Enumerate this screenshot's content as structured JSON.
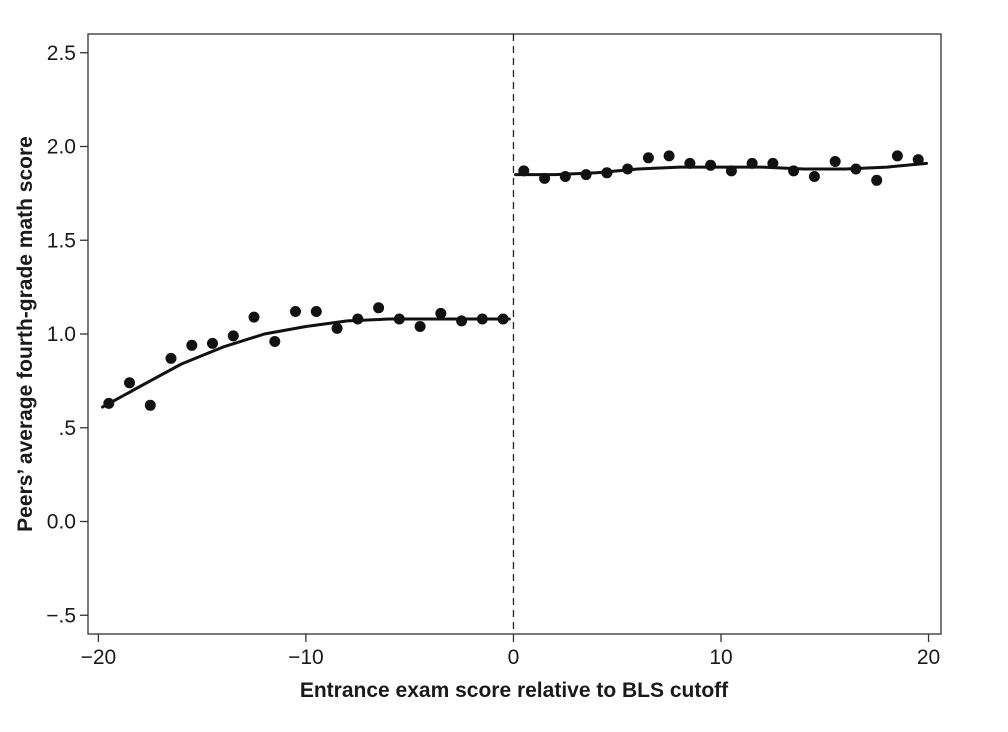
{
  "chart_data": {
    "type": "scatter",
    "title": "",
    "xlabel": "Entrance exam score relative to BLS cutoff",
    "ylabel": "Peers’ average fourth-grade math score",
    "xlim": [
      -20.5,
      20.6
    ],
    "ylim": [
      -0.6,
      2.6
    ],
    "x_ticks": [
      -20,
      -10,
      0,
      10,
      20
    ],
    "x_tick_labels": [
      "−20",
      "−10",
      "0",
      "10",
      "20"
    ],
    "y_ticks": [
      -0.5,
      0.0,
      0.5,
      1.0,
      1.5,
      2.0,
      2.5
    ],
    "y_tick_labels": [
      "−.5",
      "0.0",
      ".5",
      "1.0",
      "1.5",
      "2.0",
      "2.5"
    ],
    "grid": false,
    "legend": "none",
    "cutoff_x": 0,
    "colors": {
      "points": "#111111",
      "fit": "#111111",
      "cutoff": "#222222",
      "axes": "#333333"
    },
    "series": [
      {
        "kind": "points",
        "x": [
          -19.5,
          -18.5,
          -17.5,
          -16.5,
          -15.5,
          -14.5,
          -13.5,
          -12.5,
          -11.5,
          -10.5,
          -9.5,
          -8.5,
          -7.5,
          -6.5,
          -5.5,
          -4.5,
          -3.5,
          -2.5,
          -1.5,
          -0.5,
          0.5,
          1.5,
          2.5,
          3.5,
          4.5,
          5.5,
          6.5,
          7.5,
          8.5,
          9.5,
          10.5,
          11.5,
          12.5,
          13.5,
          14.5,
          15.5,
          16.5,
          17.5,
          18.5,
          19.5
        ],
        "y": [
          0.63,
          0.74,
          0.62,
          0.87,
          0.94,
          0.95,
          0.99,
          1.09,
          0.96,
          1.12,
          1.12,
          1.03,
          1.08,
          1.14,
          1.08,
          1.04,
          1.11,
          1.07,
          1.08,
          1.08,
          1.87,
          1.83,
          1.84,
          1.85,
          1.86,
          1.88,
          1.94,
          1.95,
          1.91,
          1.9,
          1.87,
          1.91,
          1.91,
          1.87,
          1.84,
          1.92,
          1.88,
          1.82,
          1.95,
          1.93
        ]
      },
      {
        "kind": "fit",
        "x": [
          -19.8,
          -18,
          -16,
          -14,
          -12,
          -10,
          -8,
          -6,
          -4,
          -2,
          -0.2
        ],
        "y": [
          0.61,
          0.72,
          0.84,
          0.93,
          1.0,
          1.04,
          1.07,
          1.08,
          1.08,
          1.08,
          1.08
        ]
      },
      {
        "kind": "fit",
        "x": [
          0.1,
          2,
          4,
          6,
          8,
          10,
          12,
          14,
          16,
          18,
          19.9
        ],
        "y": [
          1.85,
          1.85,
          1.86,
          1.88,
          1.89,
          1.89,
          1.89,
          1.88,
          1.88,
          1.89,
          1.91
        ]
      }
    ]
  }
}
